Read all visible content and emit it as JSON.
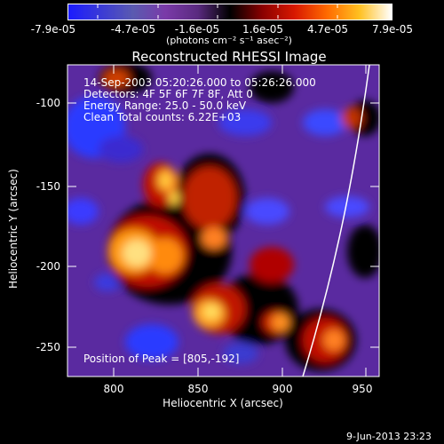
{
  "colorbar": {
    "tick_labels": [
      "-7.9e-05",
      "-4.7e-05",
      "-1.6e-05",
      "1.6e-05",
      "4.7e-05",
      "7.9e-05"
    ],
    "units_label": "(photons cm⁻² s⁻¹ asec⁻²)",
    "stops": [
      "#1b1bff",
      "#3a3ad6",
      "#5a5ab0",
      "#7a3aa8",
      "#6a2a90",
      "#000000",
      "#9a0000",
      "#e02000",
      "#ff7a00",
      "#ffcc20",
      "#ffffff"
    ]
  },
  "plot": {
    "title": "Reconstructed RHESSI Image",
    "xlabel": "Heliocentric X (arcsec)",
    "ylabel": "Heliocentric Y (arcsec)",
    "x_ticks": [
      "800",
      "850",
      "900",
      "950"
    ],
    "y_ticks": [
      "-100",
      "-150",
      "-200",
      "-250"
    ],
    "info_lines": [
      "14-Sep-2003 05:20:26.000 to 05:26:26.000",
      "Detectors: 4F 5F 6F 7F 8F, Att 0",
      "Energy Range: 25.0 - 50.0 keV",
      "Clean    Total counts: 6.22E+03"
    ],
    "peak_label": "Position of Peak = [805,-192]"
  },
  "footer": {
    "timestamp": "9-Jun-2013 23:23"
  }
}
